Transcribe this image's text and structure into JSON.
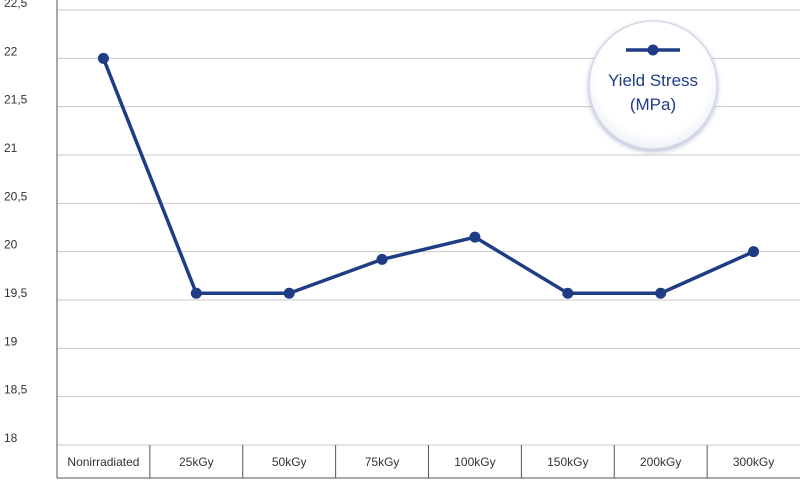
{
  "chart_data": {
    "type": "line",
    "categories": [
      "Nonirradiated",
      "25kGy",
      "50kGy",
      "75kGy",
      "100kGy",
      "150kGy",
      "200kGy",
      "300kGy"
    ],
    "series": [
      {
        "name": "Yield Stress (MPa)",
        "name_lines": [
          "Yield Stress",
          "(MPa)"
        ],
        "values": [
          22.0,
          19.57,
          19.57,
          19.92,
          20.15,
          19.57,
          19.57,
          20.0
        ]
      }
    ],
    "yticks": [
      "18",
      "18,5",
      "19",
      "19,5",
      "20",
      "20,5",
      "21",
      "21,5",
      "22",
      "22,5"
    ],
    "ytick_values": [
      18,
      18.5,
      19,
      19.5,
      20,
      20.5,
      21,
      21.5,
      22,
      22.5
    ],
    "ylim": [
      18,
      22.5
    ],
    "grid": true,
    "legend_position": "top-right",
    "colors": {
      "series": "#1f3d85",
      "grid": "#c8c8c8",
      "axis": "#555555",
      "legend_border": "#d4d9e6"
    }
  }
}
